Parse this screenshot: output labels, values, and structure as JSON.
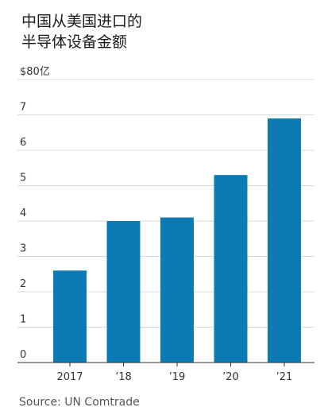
{
  "title": [
    "中国从美国进口的",
    "半导体设备金额"
  ],
  "source": "Source: UN Comtrade",
  "chart_data": {
    "type": "bar",
    "categories": [
      "2017",
      "’18",
      "’19",
      "’20",
      "’21"
    ],
    "values": [
      2.6,
      4.0,
      4.1,
      5.3,
      6.9
    ],
    "ylim": [
      0,
      8
    ],
    "y_ticks": [
      0,
      1,
      2,
      3,
      4,
      5,
      6,
      7,
      8
    ],
    "y_tick_labels": [
      "0",
      "1",
      "2",
      "3",
      "4",
      "5",
      "6",
      "7",
      "$80亿"
    ],
    "bar_color": "#0d7bb3",
    "grid": true
  }
}
